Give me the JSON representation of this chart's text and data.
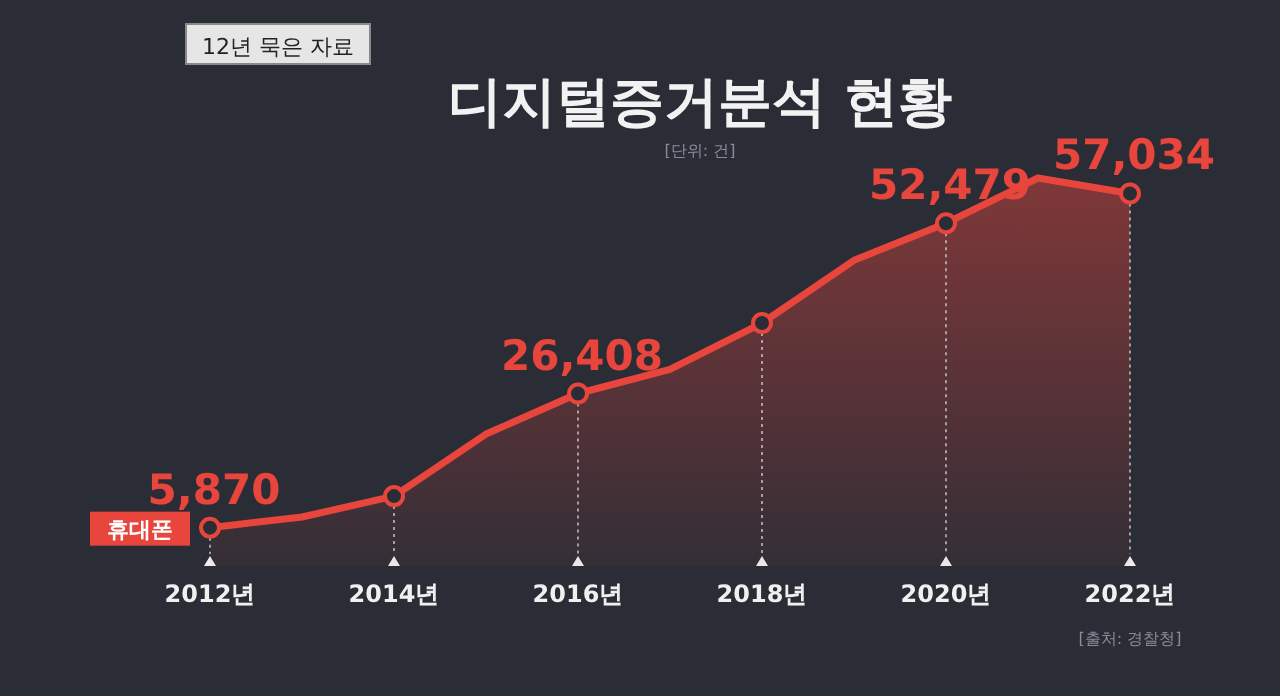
{
  "chart_data": {
    "type": "area",
    "title": "디지털증거분석 현황",
    "subtitle": "[단위: 건]",
    "annotations": [
      "12년 묵은 자료",
      "[출처: 경찰청]"
    ],
    "x": [
      2012,
      2013,
      2014,
      2015,
      2016,
      2017,
      2018,
      2019,
      2020,
      2021,
      2022
    ],
    "series": [
      {
        "name": "휴대폰",
        "color": "#e8453c",
        "values": [
          5870,
          7500,
          10700,
          20200,
          26408,
          30100,
          37200,
          46800,
          52479,
          59400,
          57034
        ],
        "value_labels": [
          "5,870",
          null,
          null,
          null,
          "26,408",
          null,
          null,
          null,
          "52,479",
          null,
          "57,034"
        ]
      }
    ],
    "xlim": [
      2012,
      2022
    ],
    "xticks": [
      {
        "value": 2012,
        "label": "2012년"
      },
      {
        "value": 2014,
        "label": "2014년"
      },
      {
        "value": 2016,
        "label": "2016년"
      },
      {
        "value": 2018,
        "label": "2018년"
      },
      {
        "value": 2020,
        "label": "2020년"
      },
      {
        "value": 2022,
        "label": "2022년"
      }
    ],
    "marker": "circle"
  }
}
